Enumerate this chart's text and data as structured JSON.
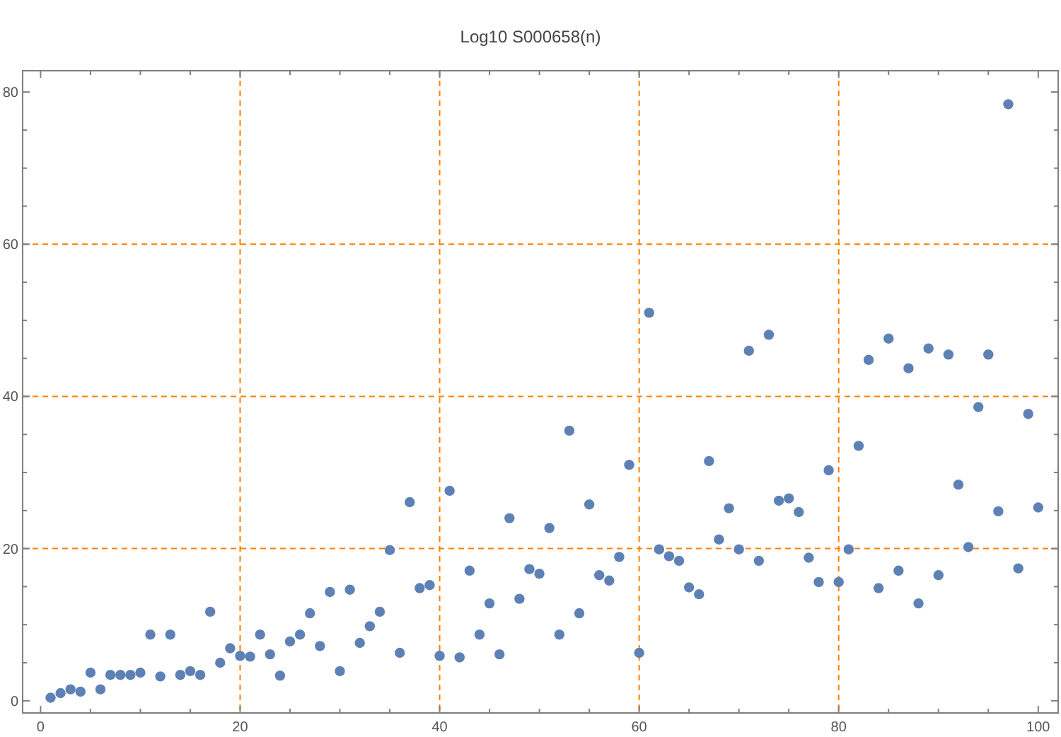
{
  "chart_data": {
    "type": "scatter",
    "title": "Log10 S000658(n)",
    "x": [
      1,
      2,
      3,
      4,
      5,
      6,
      7,
      8,
      9,
      10,
      11,
      12,
      13,
      14,
      15,
      16,
      17,
      18,
      19,
      20,
      21,
      22,
      23,
      24,
      25,
      26,
      27,
      28,
      29,
      30,
      31,
      32,
      33,
      34,
      35,
      36,
      37,
      38,
      39,
      40,
      41,
      42,
      43,
      44,
      45,
      46,
      47,
      48,
      49,
      50,
      51,
      52,
      53,
      54,
      55,
      56,
      57,
      58,
      59,
      60,
      61,
      62,
      63,
      64,
      65,
      66,
      67,
      68,
      69,
      70,
      71,
      72,
      73,
      74,
      75,
      76,
      77,
      78,
      79,
      80,
      81,
      82,
      83,
      84,
      85,
      86,
      87,
      88,
      89,
      90,
      91,
      92,
      93,
      94,
      95,
      96,
      97,
      98,
      99,
      100
    ],
    "values": [
      0.4,
      1.0,
      1.5,
      1.2,
      3.7,
      1.5,
      3.4,
      3.4,
      3.4,
      3.7,
      8.7,
      3.2,
      8.7,
      3.4,
      3.9,
      3.4,
      11.7,
      5.0,
      6.9,
      5.9,
      5.8,
      8.7,
      6.1,
      3.3,
      7.8,
      8.7,
      11.5,
      7.2,
      14.3,
      3.9,
      14.6,
      7.6,
      9.8,
      11.7,
      19.8,
      6.3,
      26.1,
      14.8,
      15.2,
      5.9,
      27.6,
      5.7,
      17.1,
      8.7,
      12.8,
      6.1,
      24.0,
      13.4,
      17.3,
      16.7,
      22.7,
      8.7,
      35.5,
      11.5,
      25.8,
      16.5,
      15.8,
      18.9,
      31.0,
      6.3,
      51.0,
      19.9,
      19.0,
      18.4,
      14.9,
      14.0,
      31.5,
      21.2,
      25.3,
      19.9,
      46.0,
      18.4,
      48.1,
      26.3,
      26.6,
      24.8,
      18.8,
      15.6,
      30.3,
      15.6,
      19.9,
      33.5,
      44.8,
      14.8,
      47.6,
      17.1,
      43.7,
      12.8,
      46.3,
      16.5,
      45.5,
      28.4,
      20.2,
      38.6,
      45.5,
      24.9,
      78.4,
      17.4,
      37.7,
      25.4
    ],
    "color": "#5e81b5",
    "marker": "circle",
    "xlim": [
      -1.8,
      102
    ],
    "ylim": [
      -1.6,
      82.8
    ],
    "xticks": [
      0,
      {
        "value": 5,
        "label": null
      },
      {
        "value": 10,
        "label": null
      },
      {
        "value": 15,
        "label": null
      },
      20,
      {
        "value": 25,
        "label": null
      },
      {
        "value": 30,
        "label": null
      },
      {
        "value": 35,
        "label": null
      },
      40,
      {
        "value": 45,
        "label": null
      },
      {
        "value": 50,
        "label": null
      },
      {
        "value": 55,
        "label": null
      },
      60,
      {
        "value": 65,
        "label": null
      },
      {
        "value": 70,
        "label": null
      },
      {
        "value": 75,
        "label": null
      },
      80,
      {
        "value": 85,
        "label": null
      },
      {
        "value": 90,
        "label": null
      },
      {
        "value": 95,
        "label": null
      },
      100
    ],
    "yticks": [
      0,
      {
        "value": 5,
        "label": null
      },
      {
        "value": 10,
        "label": null
      },
      {
        "value": 15,
        "label": null
      },
      20,
      {
        "value": 25,
        "label": null
      },
      {
        "value": 30,
        "label": null
      },
      {
        "value": 35,
        "label": null
      },
      40,
      {
        "value": 45,
        "label": null
      },
      {
        "value": 50,
        "label": null
      },
      {
        "value": 55,
        "label": null
      },
      60,
      {
        "value": 65,
        "label": null
      },
      {
        "value": 70,
        "label": null
      },
      {
        "value": 75,
        "label": null
      },
      80
    ],
    "ref_lines": [
      {
        "axis": "x",
        "value": 20,
        "color": "#ff8000",
        "line_style": "dashed"
      },
      {
        "axis": "x",
        "value": 40,
        "color": "#ff8000",
        "line_style": "dashed"
      },
      {
        "axis": "x",
        "value": 60,
        "color": "#ff8000",
        "line_style": "dashed"
      },
      {
        "axis": "x",
        "value": 80,
        "color": "#ff8000",
        "line_style": "dashed"
      },
      {
        "axis": "y",
        "value": 20,
        "color": "#ff8000",
        "line_style": "dashed"
      },
      {
        "axis": "y",
        "value": 40,
        "color": "#ff8000",
        "line_style": "dashed"
      },
      {
        "axis": "y",
        "value": 60,
        "color": "#ff8000",
        "line_style": "dashed"
      }
    ]
  }
}
